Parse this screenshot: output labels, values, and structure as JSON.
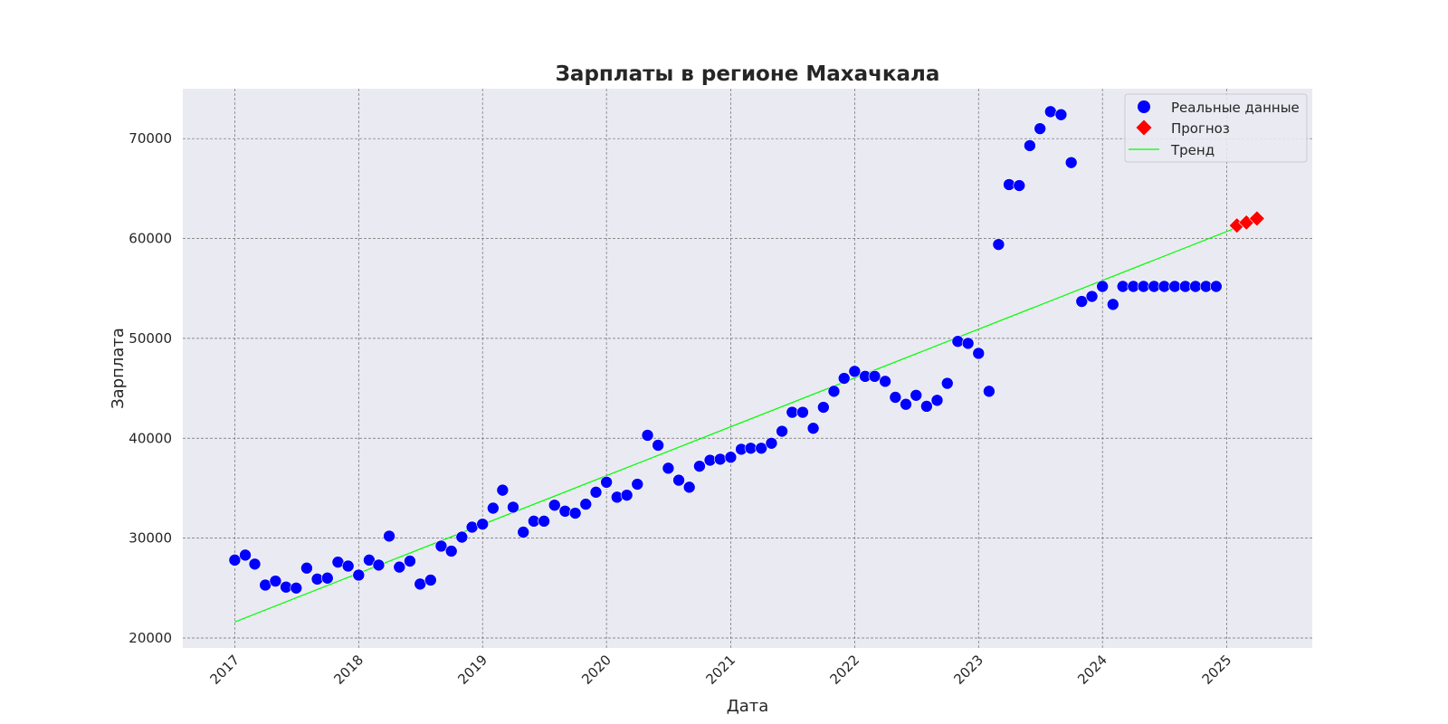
{
  "chart_data": {
    "type": "scatter",
    "title": "Зарплаты в регионе Махачкала",
    "xlabel": "Дата",
    "ylabel": "Зарплата",
    "xlim": [
      "2016-08-01",
      "2025-09-10"
    ],
    "ylim": [
      19000,
      75000
    ],
    "grid": true,
    "legend_position": "top-right",
    "x_ticks": [
      "2017",
      "2018",
      "2019",
      "2020",
      "2021",
      "2022",
      "2023",
      "2024",
      "2025"
    ],
    "y_ticks": [
      "20000",
      "30000",
      "40000",
      "50000",
      "60000",
      "70000"
    ],
    "series": [
      {
        "name": "Реальные данные",
        "kind": "scatter",
        "marker": "circle",
        "color": "#0000ff",
        "x": [
          "2017-01-01",
          "2017-02-01",
          "2017-03-01",
          "2017-04-01",
          "2017-05-01",
          "2017-06-01",
          "2017-07-01",
          "2017-08-01",
          "2017-09-01",
          "2017-10-01",
          "2017-11-01",
          "2017-12-01",
          "2018-01-01",
          "2018-02-01",
          "2018-03-01",
          "2018-04-01",
          "2018-05-01",
          "2018-06-01",
          "2018-07-01",
          "2018-08-01",
          "2018-09-01",
          "2018-10-01",
          "2018-11-01",
          "2018-12-01",
          "2019-01-01",
          "2019-02-01",
          "2019-03-01",
          "2019-04-01",
          "2019-05-01",
          "2019-06-01",
          "2019-07-01",
          "2019-08-01",
          "2019-09-01",
          "2019-10-01",
          "2019-11-01",
          "2019-12-01",
          "2020-01-01",
          "2020-02-01",
          "2020-03-01",
          "2020-04-01",
          "2020-05-01",
          "2020-06-01",
          "2020-07-01",
          "2020-08-01",
          "2020-09-01",
          "2020-10-01",
          "2020-11-01",
          "2020-12-01",
          "2021-01-01",
          "2021-02-01",
          "2021-03-01",
          "2021-04-01",
          "2021-05-01",
          "2021-06-01",
          "2021-07-01",
          "2021-08-01",
          "2021-09-01",
          "2021-10-01",
          "2021-11-01",
          "2021-12-01",
          "2022-01-01",
          "2022-02-01",
          "2022-03-01",
          "2022-04-01",
          "2022-05-01",
          "2022-06-01",
          "2022-07-01",
          "2022-08-01",
          "2022-09-01",
          "2022-10-01",
          "2022-11-01",
          "2022-12-01",
          "2023-01-01",
          "2023-02-01",
          "2023-03-01",
          "2023-04-01",
          "2023-05-01",
          "2023-06-01",
          "2023-07-01",
          "2023-08-01",
          "2023-09-01",
          "2023-10-01",
          "2023-11-01",
          "2023-12-01",
          "2024-01-01",
          "2024-02-01",
          "2024-03-01",
          "2024-04-01",
          "2024-05-01",
          "2024-06-01",
          "2024-07-01",
          "2024-08-01",
          "2024-09-01",
          "2024-10-01",
          "2024-11-01",
          "2024-12-01"
        ],
        "y": [
          27800,
          28300,
          27400,
          25300,
          25700,
          25100,
          25000,
          27000,
          25900,
          26000,
          27600,
          27200,
          26300,
          27800,
          27300,
          30200,
          27100,
          27700,
          25400,
          25800,
          29200,
          28700,
          30100,
          31100,
          31400,
          33000,
          34800,
          33100,
          30600,
          31700,
          31700,
          33300,
          32700,
          32500,
          33400,
          34600,
          35600,
          34100,
          34300,
          35400,
          40300,
          39300,
          37000,
          35800,
          35100,
          37200,
          37800,
          37900,
          38100,
          38900,
          39000,
          39000,
          39500,
          40700,
          42600,
          42600,
          41000,
          43100,
          44700,
          46000,
          46700,
          46200,
          46200,
          45700,
          44100,
          43400,
          44300,
          43200,
          43800,
          45500,
          49700,
          49500,
          48500,
          44700,
          59400,
          65400,
          65300,
          69300,
          71000,
          72700,
          72400,
          67600,
          53700,
          54200,
          55200,
          53400,
          55200,
          55200,
          55200,
          55200,
          55200,
          55200,
          55200,
          55200,
          55200,
          55200
        ]
      },
      {
        "name": "Прогноз",
        "kind": "scatter",
        "marker": "diamond",
        "color": "#ff0000",
        "x": [
          "2025-01-31",
          "2025-02-28",
          "2025-03-31"
        ],
        "y": [
          61300,
          61600,
          62000
        ]
      },
      {
        "name": "Тренд",
        "kind": "line",
        "color": "#00ff00",
        "x": [
          "2017-01-01",
          "2025-01-31"
        ],
        "y": [
          21600,
          61100
        ]
      }
    ]
  }
}
